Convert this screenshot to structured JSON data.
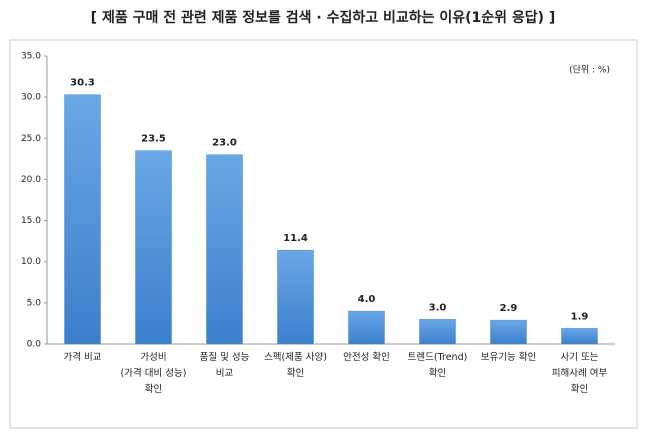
{
  "chart_data": {
    "type": "bar",
    "title": "[ 제품 구매 전 관련 제품 정보를 검색 · 수집하고 비교하는 이유(1순위 응답) ]",
    "unit_note": "(단위 : %)",
    "categories": [
      "가격 비교",
      "가성비\n(가격 대비 성능)\n확인",
      "품질 및 성능\n비교",
      "스펙(제품 사양)\n확인",
      "안전성 확인",
      "트렌드(Trend)\n확인",
      "보유기능 확인",
      "사기 또는\n피해사례 여부\n확인"
    ],
    "values": [
      30.3,
      23.5,
      23.0,
      11.4,
      4.0,
      3.0,
      2.9,
      1.9
    ],
    "value_labels": [
      "30.3",
      "23.5",
      "23.0",
      "11.4",
      "4.0",
      "3.0",
      "2.9",
      "1.9"
    ],
    "color": "#4a8fd8",
    "ylim": [
      0,
      35
    ],
    "yticks": [
      {
        "value": 0,
        "label": "0.0"
      },
      {
        "value": 5,
        "label": "5.0"
      },
      {
        "value": 10,
        "label": "10.0"
      },
      {
        "value": 15,
        "label": "15.0"
      },
      {
        "value": 20,
        "label": "20.0"
      },
      {
        "value": 25,
        "label": "25.0"
      },
      {
        "value": 30,
        "label": "30.0"
      },
      {
        "value": 35,
        "label": "35.0"
      }
    ],
    "grid": false
  }
}
